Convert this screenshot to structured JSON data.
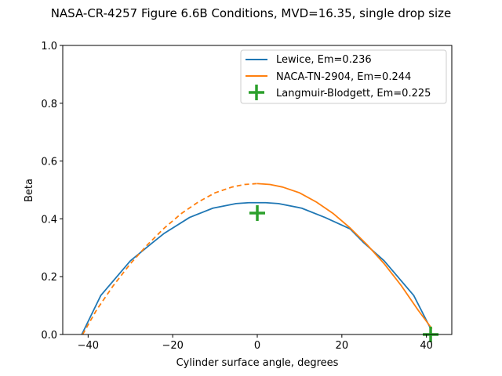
{
  "chart_data": {
    "type": "line",
    "title": "NASA-CR-4257 Figure 6.6B Conditions, MVD=16.35, single drop size",
    "xlabel": "Cylinder surface angle, degrees",
    "ylabel": "Beta",
    "xlim": [
      -46,
      46
    ],
    "ylim": [
      0,
      1.0
    ],
    "xticks": [
      -40,
      -20,
      0,
      20,
      40
    ],
    "yticks": [
      0.0,
      0.2,
      0.4,
      0.6,
      0.8,
      1.0
    ],
    "xtick_labels": [
      "−40",
      "−20",
      "0",
      "20",
      "40"
    ],
    "ytick_labels": [
      "0.0",
      "0.2",
      "0.4",
      "0.6",
      "0.8",
      "1.0"
    ],
    "grid": false,
    "legend_position": "top-right",
    "colors": {
      "lewice": "#1f77b4",
      "naca": "#ff7f0e",
      "langmuir": "#2ca02c"
    },
    "series": [
      {
        "name": "Lewice, Em=0.236",
        "style": "solid",
        "x": [
          -41.5,
          -37,
          -30,
          -25,
          -22,
          -16,
          -10.5,
          -5,
          -2,
          2,
          5,
          10.5,
          16,
          22,
          25,
          30,
          37,
          41
        ],
        "y": [
          0.0,
          0.135,
          0.255,
          0.315,
          0.35,
          0.405,
          0.437,
          0.453,
          0.456,
          0.456,
          0.453,
          0.437,
          0.405,
          0.365,
          0.32,
          0.255,
          0.135,
          0.02
        ]
      },
      {
        "name": "NACA-TN-2904, Em=0.244",
        "style": "dashed-left-solid-right",
        "x": [
          -41.3,
          -38,
          -34,
          -30,
          -26,
          -22,
          -18,
          -14,
          -10,
          -6,
          -3,
          0,
          3,
          6,
          10,
          14,
          18,
          22,
          26,
          30,
          34,
          38,
          41.3
        ],
        "y": [
          0.0,
          0.085,
          0.17,
          0.245,
          0.31,
          0.368,
          0.418,
          0.458,
          0.49,
          0.51,
          0.519,
          0.522,
          0.519,
          0.51,
          0.49,
          0.458,
          0.418,
          0.368,
          0.31,
          0.245,
          0.17,
          0.085,
          0.02
        ]
      },
      {
        "name": "Langmuir-Blodgett, Em=0.225",
        "style": "marker-plus",
        "x": [
          0,
          41
        ],
        "y": [
          0.42,
          0.0
        ]
      }
    ]
  }
}
